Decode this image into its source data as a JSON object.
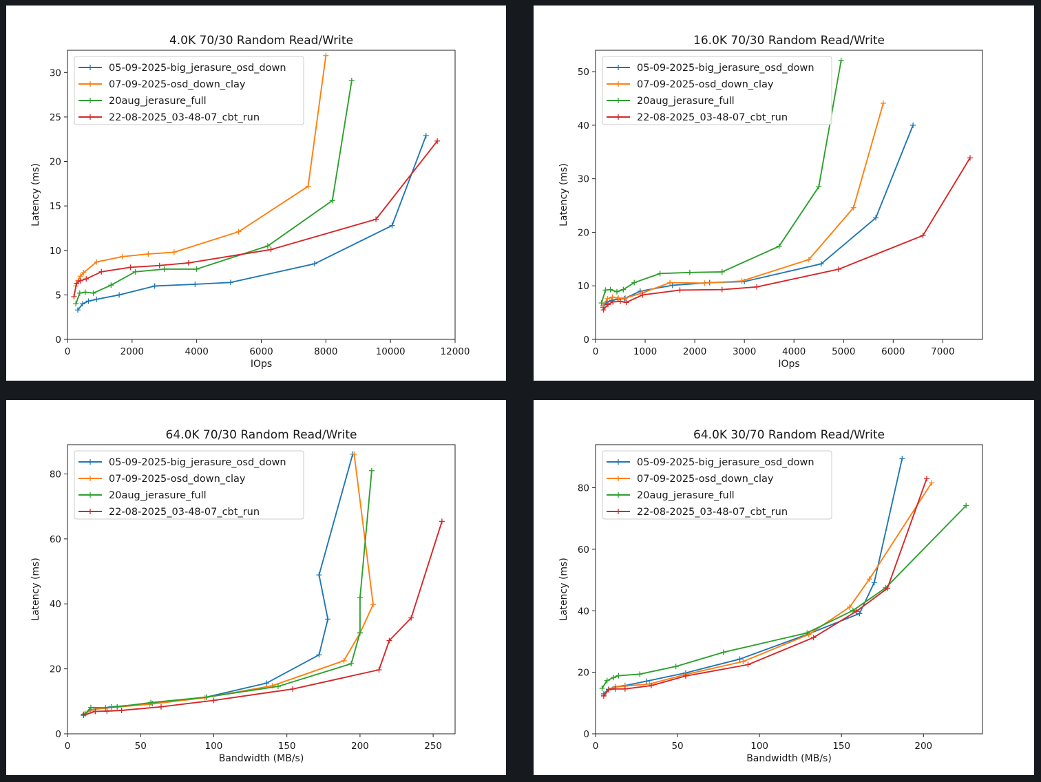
{
  "chart_data": [
    {
      "type": "line",
      "title": "4.0K 70/30  Random Read/Write",
      "xlabel": "IOps",
      "ylabel": "Latency (ms)",
      "xlim": [
        0,
        12000
      ],
      "ylim": [
        0,
        32.5
      ],
      "xticks": [
        0,
        2000,
        4000,
        6000,
        8000,
        10000,
        12000
      ],
      "yticks": [
        0,
        5,
        10,
        15,
        20,
        25,
        30
      ],
      "legend": "top-left",
      "series": [
        {
          "name": "05-09-2025-big_jerasure_osd_down",
          "color": "#1f77b4",
          "x": [
            320,
            470,
            650,
            900,
            1600,
            2700,
            3950,
            5050,
            7650,
            10050,
            11100
          ],
          "y": [
            3.3,
            4.0,
            4.3,
            4.5,
            5.0,
            6.0,
            6.2,
            6.4,
            8.5,
            12.8,
            22.9
          ]
        },
        {
          "name": "07-09-2025-osd_down_clay",
          "color": "#ff7f0e",
          "x": [
            260,
            330,
            400,
            500,
            900,
            1700,
            2500,
            3300,
            5300,
            7450,
            8000
          ],
          "y": [
            6.0,
            6.6,
            7.1,
            7.5,
            8.7,
            9.3,
            9.6,
            9.8,
            12.1,
            17.2,
            31.9
          ]
        },
        {
          "name": "20aug_jerasure_full",
          "color": "#2ca02c",
          "x": [
            260,
            380,
            550,
            800,
            1350,
            2100,
            3000,
            4000,
            6200,
            8200,
            8800
          ],
          "y": [
            4.0,
            5.2,
            5.3,
            5.2,
            6.1,
            7.6,
            7.9,
            7.9,
            10.5,
            15.6,
            29.1
          ]
        },
        {
          "name": "22-08-2025_03-48-07_cbt_run",
          "color": "#d62728",
          "x": [
            200,
            280,
            400,
            580,
            1050,
            1950,
            2850,
            3750,
            6300,
            9550,
            11450
          ],
          "y": [
            4.8,
            6.3,
            6.6,
            6.8,
            7.6,
            8.1,
            8.3,
            8.6,
            10.1,
            13.5,
            22.3
          ]
        }
      ]
    },
    {
      "type": "line",
      "title": "16.0K 70/30  Random Read/Write",
      "xlabel": "IOps",
      "ylabel": "Latency (ms)",
      "xlim": [
        0,
        7800
      ],
      "ylim": [
        0,
        54
      ],
      "xticks": [
        0,
        1000,
        2000,
        3000,
        4000,
        5000,
        6000,
        7000
      ],
      "yticks": [
        0,
        10,
        20,
        30,
        40,
        50
      ],
      "legend": "top-left",
      "series": [
        {
          "name": "05-09-2025-big_jerasure_osd_down",
          "color": "#1f77b4",
          "x": [
            150,
            230,
            330,
            450,
            580,
            900,
            1550,
            2300,
            3000,
            4550,
            5650,
            6400
          ],
          "y": [
            6.0,
            7.0,
            7.3,
            7.5,
            7.6,
            9.0,
            10.1,
            10.6,
            10.8,
            14.1,
            22.7,
            40.0
          ]
        },
        {
          "name": "07-09-2025-osd_down_clay",
          "color": "#ff7f0e",
          "x": [
            150,
            240,
            340,
            460,
            600,
            950,
            1500,
            2200,
            2950,
            4300,
            5200,
            5800
          ],
          "y": [
            6.3,
            7.6,
            7.9,
            7.7,
            7.7,
            8.7,
            10.6,
            10.5,
            10.9,
            14.9,
            24.6,
            44.1
          ]
        },
        {
          "name": "20aug_jerasure_full",
          "color": "#2ca02c",
          "x": [
            120,
            200,
            300,
            430,
            560,
            780,
            1300,
            1900,
            2550,
            3700,
            4500,
            4950
          ],
          "y": [
            6.8,
            9.2,
            9.3,
            8.9,
            9.3,
            10.6,
            12.3,
            12.5,
            12.6,
            17.4,
            28.5,
            52.1
          ]
        },
        {
          "name": "22-08-2025_03-48-07_cbt_run",
          "color": "#d62728",
          "x": [
            160,
            250,
            350,
            500,
            620,
            950,
            1700,
            2550,
            3250,
            4900,
            6600,
            7550
          ],
          "y": [
            5.5,
            6.5,
            7.0,
            7.1,
            6.9,
            8.3,
            9.2,
            9.3,
            9.8,
            13.1,
            19.4,
            33.9
          ]
        }
      ]
    },
    {
      "type": "line",
      "title": "64.0K 70/30  Random Read/Write",
      "xlabel": "Bandwidth (MB/s)",
      "ylabel": "Latency (ms)",
      "xlim": [
        0,
        265
      ],
      "ylim": [
        0,
        89
      ],
      "xticks": [
        0,
        50,
        100,
        150,
        200,
        250
      ],
      "yticks": [
        0,
        20,
        40,
        60,
        80
      ],
      "legend": "top-left",
      "series": [
        {
          "name": "05-09-2025-big_jerasure_osd_down",
          "color": "#1f77b4",
          "x": [
            11,
            16,
            30,
            58,
            95,
            136,
            172,
            178,
            172,
            195
          ],
          "y": [
            6.0,
            7.4,
            8.3,
            9.3,
            11.3,
            15.6,
            24.3,
            35.3,
            48.9,
            86.1
          ]
        },
        {
          "name": "07-09-2025-osd_down_clay",
          "color": "#ff7f0e",
          "x": [
            12,
            18,
            30,
            56,
            94,
            140,
            189,
            200,
            209,
            196
          ],
          "y": [
            6.3,
            7.5,
            8.1,
            9.1,
            11.1,
            14.8,
            22.5,
            31.0,
            39.8,
            86.1
          ]
        },
        {
          "name": "20aug_jerasure_full",
          "color": "#2ca02c",
          "x": [
            12,
            16,
            26,
            34,
            57,
            95,
            144,
            194,
            200,
            200,
            208
          ],
          "y": [
            6.1,
            8.1,
            8.0,
            8.3,
            9.6,
            11.3,
            14.6,
            21.6,
            31.1,
            41.9,
            81.0
          ]
        },
        {
          "name": "22-08-2025_03-48-07_cbt_run",
          "color": "#d62728",
          "x": [
            11,
            19,
            27,
            37,
            64,
            100,
            154,
            213,
            220,
            235,
            256
          ],
          "y": [
            5.7,
            6.9,
            7.0,
            7.2,
            8.3,
            10.3,
            13.8,
            19.7,
            28.7,
            35.7,
            65.4
          ]
        }
      ]
    },
    {
      "type": "line",
      "title": "64.0K 30/70  Random Read/Write",
      "xlabel": "Bandwidth (MB/s)",
      "ylabel": "Latency (ms)",
      "xlim": [
        0,
        236
      ],
      "ylim": [
        0,
        94
      ],
      "xticks": [
        0,
        50,
        100,
        150,
        200
      ],
      "yticks": [
        0,
        20,
        40,
        60,
        80
      ],
      "legend": "top-left",
      "series": [
        {
          "name": "05-09-2025-big_jerasure_osd_down",
          "color": "#1f77b4",
          "x": [
            5,
            8,
            12,
            18,
            31,
            55,
            88,
            130,
            161,
            170,
            187
          ],
          "y": [
            13.0,
            14.5,
            15.3,
            15.7,
            17.1,
            19.8,
            24.3,
            32.5,
            39.1,
            49.2,
            89.5
          ]
        },
        {
          "name": "07-09-2025-osd_down_clay",
          "color": "#ff7f0e",
          "x": [
            5,
            8,
            12,
            18,
            33,
            55,
            90,
            130,
            155,
            167,
            205
          ],
          "y": [
            12.5,
            14.3,
            15.2,
            15.5,
            16.2,
            19.3,
            23.5,
            32.3,
            41.2,
            50.3,
            81.6
          ]
        },
        {
          "name": "20aug_jerasure_full",
          "color": "#2ca02c",
          "x": [
            4,
            7,
            11,
            14,
            27,
            49,
            78,
            129,
            157,
            177,
            226
          ],
          "y": [
            14.8,
            17.3,
            18.3,
            18.9,
            19.4,
            21.9,
            26.5,
            32.8,
            40.1,
            47.5,
            74.2
          ]
        },
        {
          "name": "22-08-2025_03-48-07_cbt_run",
          "color": "#d62728",
          "x": [
            5,
            8,
            12,
            18,
            34,
            55,
            93,
            133,
            159,
            178,
            202
          ],
          "y": [
            12.3,
            14.4,
            14.6,
            14.6,
            15.7,
            18.8,
            22.5,
            31.3,
            39.8,
            47.3,
            83.0
          ]
        }
      ]
    }
  ]
}
